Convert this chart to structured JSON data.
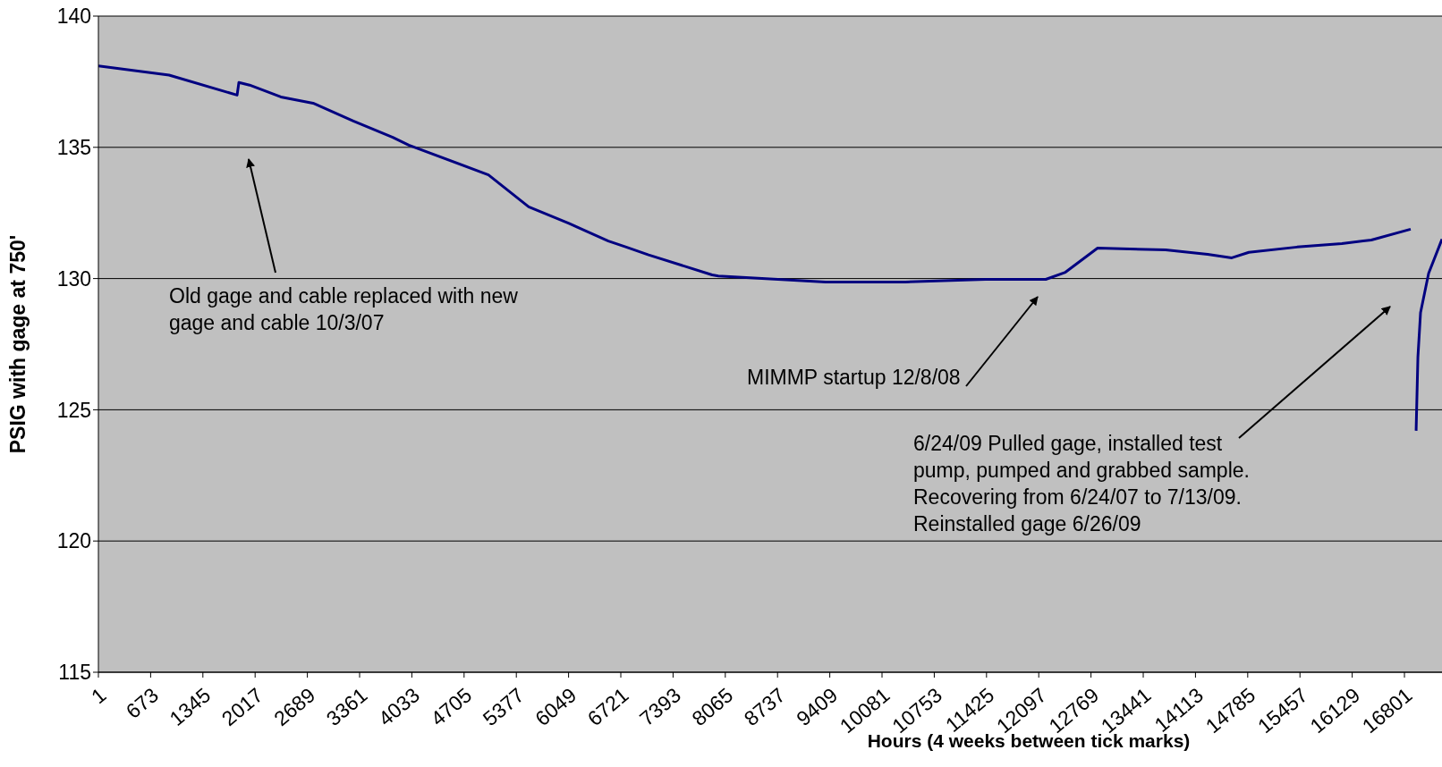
{
  "chart_data": {
    "type": "line",
    "xlabel": "Hours (4 weeks between tick marks)",
    "ylabel": "PSIG with gage at 750'",
    "xlim": [
      1,
      17284
    ],
    "xticks": [
      1,
      673,
      1345,
      2017,
      2689,
      3361,
      4033,
      4705,
      5377,
      6049,
      6721,
      7393,
      8065,
      8737,
      9409,
      10081,
      10753,
      11425,
      12097,
      12769,
      13441,
      14113,
      14785,
      15457,
      16129,
      16801
    ],
    "ylim": [
      115,
      140
    ],
    "yticks": [
      115,
      120,
      125,
      130,
      135,
      140
    ],
    "grid": "y",
    "legend": false,
    "series": [
      {
        "color": "#000080",
        "x": [
          1,
          910,
          1785,
          1808,
          1946,
          2348,
          2763,
          3280,
          3787,
          3994,
          5018,
          5536,
          6054,
          6560,
          6790,
          7078,
          7895,
          7975,
          9356,
          10380,
          11416,
          12187,
          12440,
          12854,
          13728,
          14270,
          14580,
          14800,
          15420,
          15996,
          16375,
          16881,
          16920,
          16951,
          16974,
          17008,
          17112,
          17284
        ],
        "values": [
          138.1,
          137.75,
          136.99,
          137.47,
          137.37,
          136.92,
          136.68,
          136.0,
          135.38,
          135.08,
          133.95,
          132.73,
          132.1,
          131.43,
          131.2,
          130.9,
          130.14,
          130.1,
          129.87,
          129.87,
          129.97,
          129.97,
          130.24,
          131.16,
          131.09,
          130.92,
          130.79,
          131.0,
          131.2,
          131.33,
          131.47,
          131.88,
          null,
          124.2,
          127.0,
          128.7,
          130.2,
          131.5
        ]
      }
    ],
    "annotations": [
      "Old gage and cable replaced with new gage and cable  10/3/07",
      "MIMMP startup 12/8/08",
      "6/24/09 Pulled gage, installed test pump, pumped and grabbed sample. Recovering from 6/24/07 to 7/13/09. Reinstalled gage 6/26/09"
    ]
  }
}
